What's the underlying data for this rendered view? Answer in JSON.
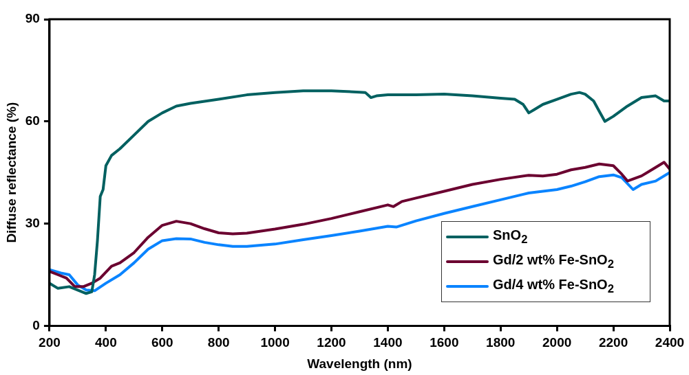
{
  "chart_data": {
    "type": "line",
    "xlabel": "Wavelength (nm)",
    "ylabel": "Diffuse reflectance (%)",
    "xlim": [
      200,
      2400
    ],
    "xticks": [
      200,
      400,
      600,
      800,
      1000,
      1200,
      1400,
      1600,
      1800,
      2000,
      2200,
      2400
    ],
    "ylim": [
      0,
      90
    ],
    "yticks": [
      0,
      30,
      60,
      90
    ],
    "grid": false,
    "legend": "bottom right",
    "marker": "none",
    "line_style": "solid",
    "series": [
      {
        "name": "SnO$_{2}$",
        "color": "#006060",
        "x": [
          200,
          230,
          270,
          300,
          330,
          350,
          360,
          370,
          380,
          390,
          400,
          420,
          450,
          500,
          550,
          600,
          650,
          700,
          800,
          900,
          1000,
          1100,
          1200,
          1300,
          1320,
          1340,
          1360,
          1400,
          1500,
          1600,
          1700,
          1800,
          1850,
          1880,
          1900,
          1920,
          1950,
          2000,
          2050,
          2080,
          2100,
          2130,
          2150,
          2170,
          2200,
          2250,
          2300,
          2350,
          2380,
          2400
        ],
        "values": [
          12.5,
          11,
          11.5,
          10.5,
          9.5,
          10,
          15,
          25,
          38,
          40,
          47,
          50,
          52,
          56,
          60,
          62.5,
          64.5,
          65.3,
          66.5,
          67.8,
          68.5,
          69,
          69,
          68.6,
          68.5,
          67,
          67.5,
          67.8,
          67.8,
          68,
          67.5,
          66.8,
          66.5,
          65,
          62.5,
          63.5,
          65,
          66.5,
          68,
          68.5,
          68,
          66,
          63,
          60,
          61.5,
          64.5,
          67,
          67.5,
          66,
          66
        ]
      },
      {
        "name": "Gd/2 wt% Fe-SnO$_{2}$",
        "color": "#6b0030",
        "x": [
          200,
          230,
          260,
          290,
          320,
          350,
          380,
          420,
          450,
          500,
          550,
          600,
          650,
          700,
          750,
          800,
          850,
          900,
          1000,
          1100,
          1200,
          1300,
          1400,
          1420,
          1450,
          1500,
          1600,
          1700,
          1800,
          1900,
          1950,
          2000,
          2050,
          2100,
          2150,
          2200,
          2230,
          2250,
          2300,
          2350,
          2380,
          2400
        ],
        "values": [
          16,
          15,
          14,
          11.5,
          11.5,
          12.5,
          14,
          17.5,
          18.5,
          21.5,
          26,
          29.5,
          30.7,
          30,
          28.5,
          27.3,
          27,
          27.2,
          28.4,
          29.8,
          31.5,
          33.5,
          35.5,
          35,
          36.5,
          37.5,
          39.5,
          41.5,
          43,
          44.2,
          44,
          44.5,
          45.8,
          46.5,
          47.5,
          47,
          44.5,
          42.5,
          44,
          46.5,
          48,
          46
        ]
      },
      {
        "name": "Gd/4 wt% Fe-SnO$_{2}$",
        "color": "#0a84ff",
        "x": [
          200,
          240,
          270,
          300,
          330,
          360,
          400,
          450,
          500,
          550,
          600,
          650,
          700,
          750,
          800,
          850,
          900,
          1000,
          1100,
          1200,
          1300,
          1400,
          1430,
          1500,
          1600,
          1700,
          1800,
          1900,
          1950,
          2000,
          2050,
          2100,
          2150,
          2200,
          2230,
          2270,
          2300,
          2350,
          2400
        ],
        "values": [
          16.5,
          15.5,
          15,
          12,
          10.5,
          10.3,
          12.5,
          15,
          18.5,
          22.5,
          25,
          25.6,
          25.5,
          24.5,
          23.8,
          23.3,
          23.3,
          24,
          25.3,
          26.5,
          27.8,
          29.2,
          29,
          30.8,
          33,
          35,
          37,
          39,
          39.5,
          40,
          41,
          42.3,
          43.8,
          44.3,
          43.5,
          40,
          41.5,
          42.5,
          45
        ]
      }
    ]
  }
}
